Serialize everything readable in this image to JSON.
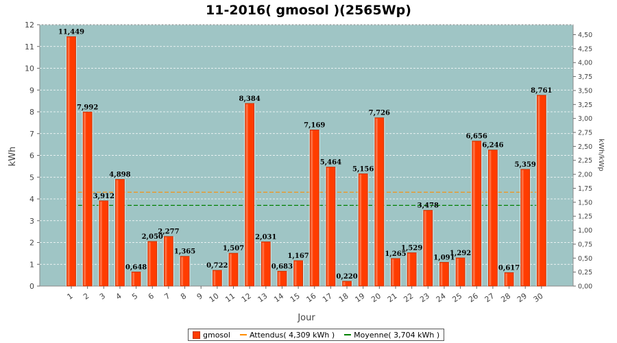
{
  "title": "11-2016( gmosol )(2565Wp)",
  "chart_data": {
    "type": "bar",
    "categories": [
      "1",
      "2",
      "3",
      "4",
      "5",
      "6",
      "7",
      "8",
      "9",
      "10",
      "11",
      "12",
      "13",
      "14",
      "15",
      "16",
      "17",
      "18",
      "19",
      "20",
      "21",
      "22",
      "23",
      "24",
      "25",
      "26",
      "27",
      "28",
      "29",
      "30"
    ],
    "series": [
      {
        "name": "gmosol",
        "values": [
          11.449,
          7.992,
          3.912,
          4.898,
          0.648,
          2.05,
          2.277,
          1.365,
          null,
          0.722,
          1.507,
          8.384,
          2.031,
          0.683,
          1.167,
          7.169,
          5.464,
          0.22,
          5.156,
          7.726,
          1.265,
          1.529,
          3.478,
          1.091,
          1.292,
          6.656,
          6.246,
          0.617,
          5.359,
          8.761
        ],
        "labels": [
          "11,449",
          "7,992",
          "3,912",
          "4,898",
          "0,648",
          "2,050",
          "2,277",
          "1,365",
          "",
          "0,722",
          "1,507",
          "8,384",
          "2,031",
          "0,683",
          "1,167",
          "7,169",
          "5,464",
          "0,220",
          "5,156",
          "7,726",
          "1,265",
          "1,529",
          "3,478",
          "1,091",
          "1,292",
          "6,656",
          "6,246",
          "0,617",
          "5,359",
          "8,761"
        ],
        "color": "#ff3c00"
      }
    ],
    "reference_lines": [
      {
        "name": "Attendus( 4,309 kWh )",
        "value": 4.309,
        "color": "#ff8c00"
      },
      {
        "name": "Moyenne( 3,704 kWh )",
        "value": 3.704,
        "color": "#008000"
      }
    ],
    "xlabel": "Jour",
    "ylabel": "kWh",
    "ylim": [
      0,
      12
    ],
    "yticks": [
      "0",
      "1",
      "2",
      "3",
      "4",
      "5",
      "6",
      "7",
      "8",
      "9",
      "10",
      "11",
      "12"
    ],
    "y2label": "kWh/kWp",
    "y2lim": [
      0,
      4.678
    ],
    "y2ticks": [
      "0,00",
      "0,25",
      "0,50",
      "0,75",
      "1,00",
      "1,25",
      "1,50",
      "1,75",
      "2,00",
      "2,25",
      "2,50",
      "2,75",
      "3,00",
      "3,25",
      "3,50",
      "3,75",
      "4,00",
      "4,25",
      "4,50"
    ],
    "grid": true,
    "plot_background": "#9fc5c5",
    "legend_position": "bottom"
  },
  "legend": {
    "series": "gmosol",
    "expected": "Attendus( 4,309 kWh )",
    "average": "Moyenne( 3,704 kWh )"
  }
}
